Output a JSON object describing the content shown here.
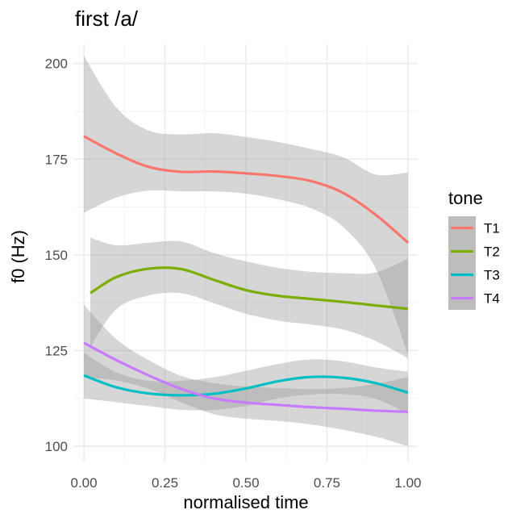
{
  "chart_data": {
    "type": "line",
    "title": "first /a/",
    "xlabel": "normalised time",
    "ylabel": "f0 (Hz)",
    "xlim": [
      -0.03,
      1.03
    ],
    "ylim": [
      96,
      205
    ],
    "x_ticks": [
      0.0,
      0.25,
      0.5,
      0.75,
      1.0
    ],
    "x_tick_labels": [
      "0.00",
      "0.25",
      "0.50",
      "0.75",
      "1.00"
    ],
    "y_ticks": [
      100,
      125,
      150,
      175,
      200
    ],
    "y_tick_labels": [
      "100",
      "125",
      "150",
      "175",
      "200"
    ],
    "grid": true,
    "legend": {
      "title": "tone",
      "position": "right"
    },
    "series": [
      {
        "name": "T1",
        "color": "#F8766D",
        "x": [
          0.0,
          0.1,
          0.2,
          0.3,
          0.4,
          0.5,
          0.6,
          0.7,
          0.8,
          0.9,
          1.0
        ],
        "y": [
          181,
          176.5,
          173,
          171.7,
          171.8,
          171.3,
          170.6,
          169.3,
          166.2,
          160.5,
          153.2
        ],
        "lower": [
          161,
          165,
          166.8,
          166.6,
          166.6,
          166,
          164.5,
          162.2,
          157.3,
          146.5,
          124
        ],
        "upper": [
          202,
          188.5,
          182.5,
          181.5,
          181.8,
          180.8,
          179.5,
          177.7,
          175.5,
          171,
          171.5
        ]
      },
      {
        "name": "T2",
        "color": "#7CAE00",
        "x": [
          0.02,
          0.1,
          0.2,
          0.3,
          0.4,
          0.5,
          0.6,
          0.7,
          0.8,
          0.9,
          1.0
        ],
        "y": [
          140,
          144.2,
          146.4,
          146.3,
          143.5,
          140.8,
          139.3,
          138.5,
          137.7,
          136.8,
          135.9
        ],
        "lower": [
          126,
          135.8,
          139.4,
          140,
          137.4,
          134.6,
          132.8,
          131.8,
          130.5,
          127.5,
          123
        ],
        "upper": [
          154.5,
          152.5,
          153.2,
          153.5,
          150.5,
          148.3,
          146.6,
          145.6,
          145.2,
          145.4,
          149
        ]
      },
      {
        "name": "T3",
        "color": "#00BFC4",
        "x": [
          0.0,
          0.1,
          0.2,
          0.3,
          0.4,
          0.5,
          0.6,
          0.7,
          0.8,
          0.9,
          1.0
        ],
        "y": [
          118.5,
          115.4,
          113.8,
          113.3,
          113.7,
          115.1,
          117,
          118.1,
          117.9,
          116.5,
          114
        ],
        "lower": [
          112.5,
          111.5,
          110.5,
          109.5,
          109.5,
          110.5,
          112.5,
          113.5,
          113.6,
          112.4,
          108.5
        ],
        "upper": [
          124.5,
          119.3,
          117.1,
          117.1,
          118,
          119.7,
          121.5,
          122.7,
          122.2,
          120.6,
          119.5
        ]
      },
      {
        "name": "T4",
        "color": "#C77CFF",
        "x": [
          0.0,
          0.1,
          0.2,
          0.3,
          0.4,
          0.5,
          0.6,
          0.7,
          0.8,
          0.9,
          1.0
        ],
        "y": [
          127,
          122.5,
          118.5,
          115,
          112.5,
          111.4,
          110.8,
          110.2,
          109.8,
          109.3,
          109
        ],
        "lower": [
          118,
          117.2,
          115,
          111.5,
          108.4,
          107.2,
          106.6,
          105.7,
          104.3,
          102.5,
          100
        ],
        "upper": [
          137,
          128,
          122.5,
          118.4,
          116.5,
          115.6,
          115.2,
          114.9,
          115.2,
          116.3,
          118
        ]
      }
    ]
  }
}
